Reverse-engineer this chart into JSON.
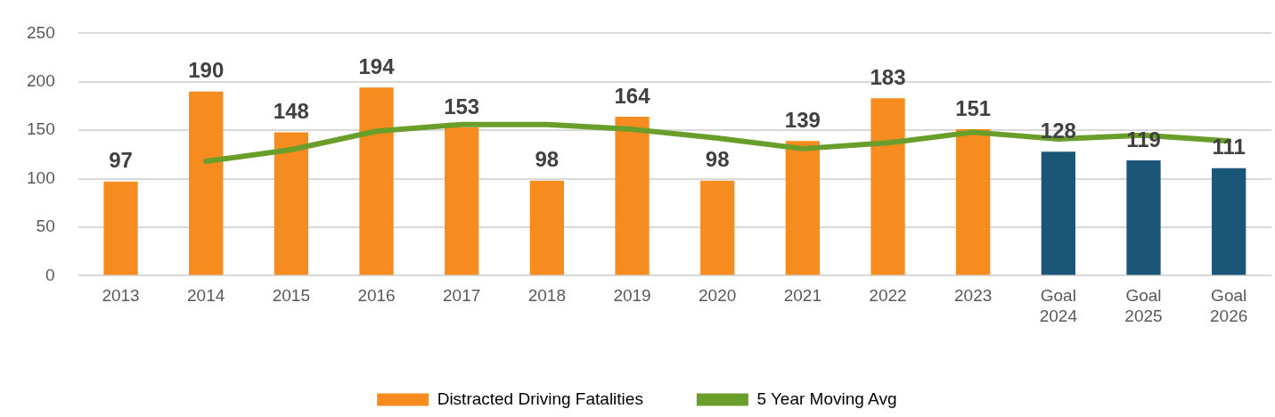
{
  "chart_data": {
    "type": "bar",
    "categories": [
      "2013",
      "2014",
      "2015",
      "2016",
      "2017",
      "2018",
      "2019",
      "2020",
      "2021",
      "2022",
      "2023",
      "Goal 2024",
      "Goal 2025",
      "Goal 2026"
    ],
    "series": [
      {
        "name": "Distracted Driving Fatalities",
        "color": "#f68b1f",
        "colors": [
          "#f68b1f",
          "#f68b1f",
          "#f68b1f",
          "#f68b1f",
          "#f68b1f",
          "#f68b1f",
          "#f68b1f",
          "#f68b1f",
          "#f68b1f",
          "#f68b1f",
          "#f68b1f",
          "#1b5577",
          "#1b5577",
          "#1b5577"
        ],
        "values": [
          97,
          190,
          148,
          194,
          153,
          98,
          164,
          98,
          139,
          183,
          151,
          128,
          119,
          111
        ],
        "value_labels": [
          "97",
          "190",
          "148",
          "194",
          "153",
          "98",
          "164",
          "98",
          "139",
          "183",
          "151",
          "128",
          "119",
          "111"
        ]
      },
      {
        "name": "5 Year Moving Avg",
        "type": "line",
        "color": "#6a9e2a",
        "values": [
          null,
          118,
          130,
          149,
          156,
          156,
          151,
          142,
          131,
          137,
          148,
          141,
          145,
          139
        ]
      }
    ],
    "ylim": [
      0,
      250
    ],
    "yticks": [
      0,
      50,
      100,
      150,
      200,
      250
    ],
    "grid": "y",
    "legend": "bottom",
    "marker": "none",
    "line_style": "solid"
  }
}
